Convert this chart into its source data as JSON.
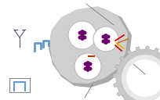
{
  "bg_color": "#ffffff",
  "cell_body_color": "#c8c8c8",
  "cell_inner_color": "#d8d8d8",
  "vesicle_color": "#e8e8e8",
  "dot_color": "#6b006b",
  "blue_shape_color": "#6699cc",
  "line_color": "#555555",
  "red_line_color": "#cc0000",
  "yellow_line_color": "#ddcc00",
  "orange_line_color": "#cc6600",
  "gear_color": "#c0c0c0"
}
